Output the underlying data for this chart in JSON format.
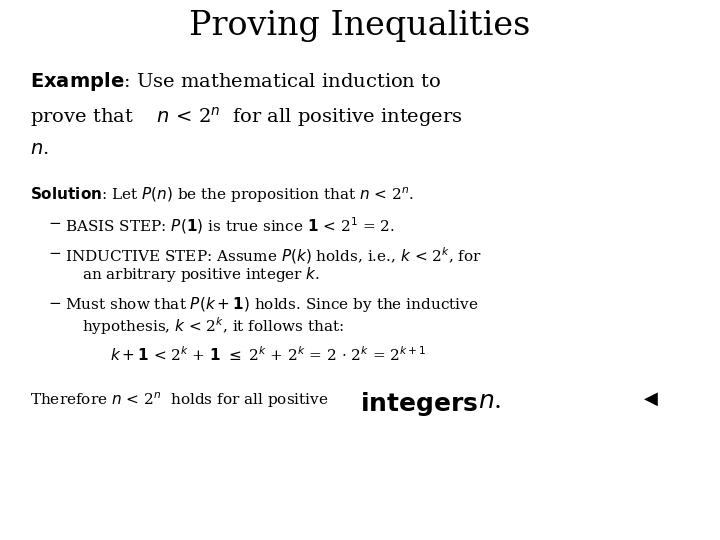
{
  "title": "Proving Inequalities",
  "bg_color": "#ffffff",
  "text_color": "#000000",
  "title_fontsize": 24,
  "example_fontsize": 14,
  "body_fontsize": 11,
  "therefore_fontsize": 11,
  "integers_fontsize": 18,
  "title_font": "DejaVu Serif",
  "body_font": "DejaVu Serif"
}
